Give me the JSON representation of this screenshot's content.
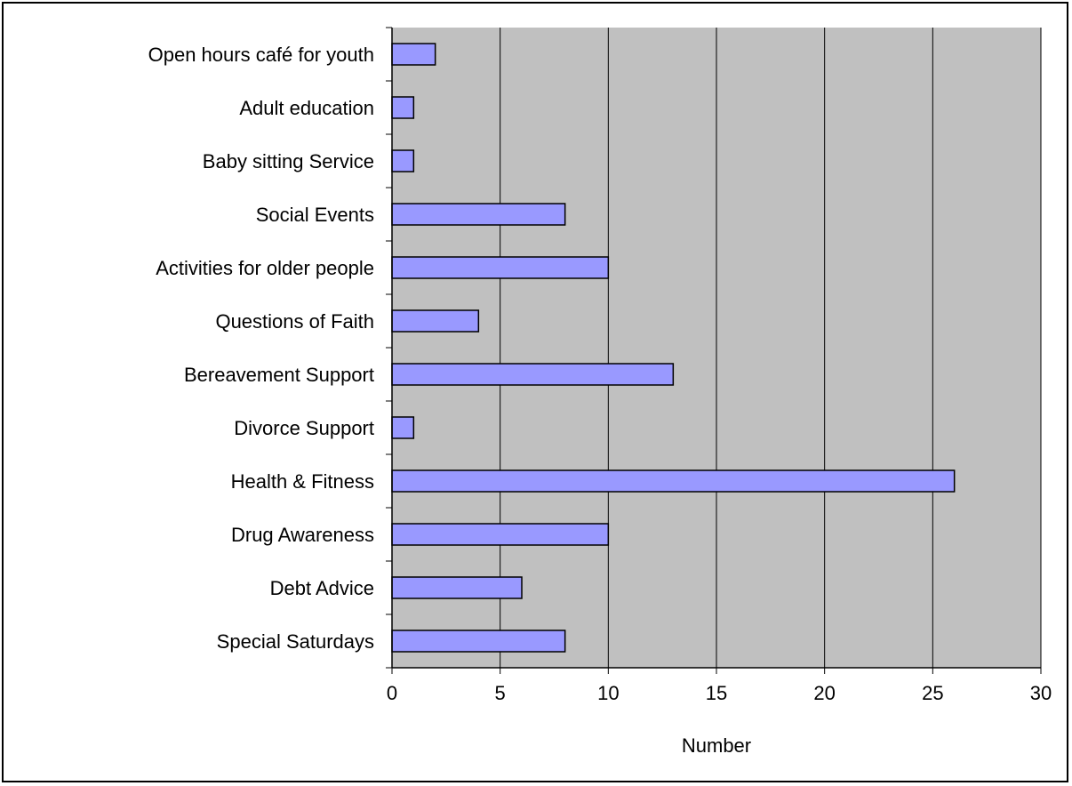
{
  "chart_data": {
    "type": "bar",
    "orientation": "horizontal",
    "categories": [
      "Open hours café for youth",
      "Adult education",
      "Baby sitting Service",
      "Social Events",
      "Activities for older people",
      "Questions of Faith",
      "Bereavement Support",
      "Divorce Support",
      "Health & Fitness",
      "Drug Awareness",
      "Debt Advice",
      "Special Saturdays"
    ],
    "values": [
      2,
      1,
      1,
      8,
      10,
      4,
      13,
      1,
      26,
      10,
      6,
      8
    ],
    "title": "",
    "xlabel": "Number",
    "ylabel": "",
    "xlim": [
      0,
      30
    ],
    "xticks": [
      0,
      5,
      10,
      15,
      20,
      25,
      30
    ],
    "grid": true,
    "legend": "none",
    "colors": {
      "bar": "#9999ff",
      "plot_background": "#c0c0c0",
      "gridline": "#000000"
    }
  }
}
